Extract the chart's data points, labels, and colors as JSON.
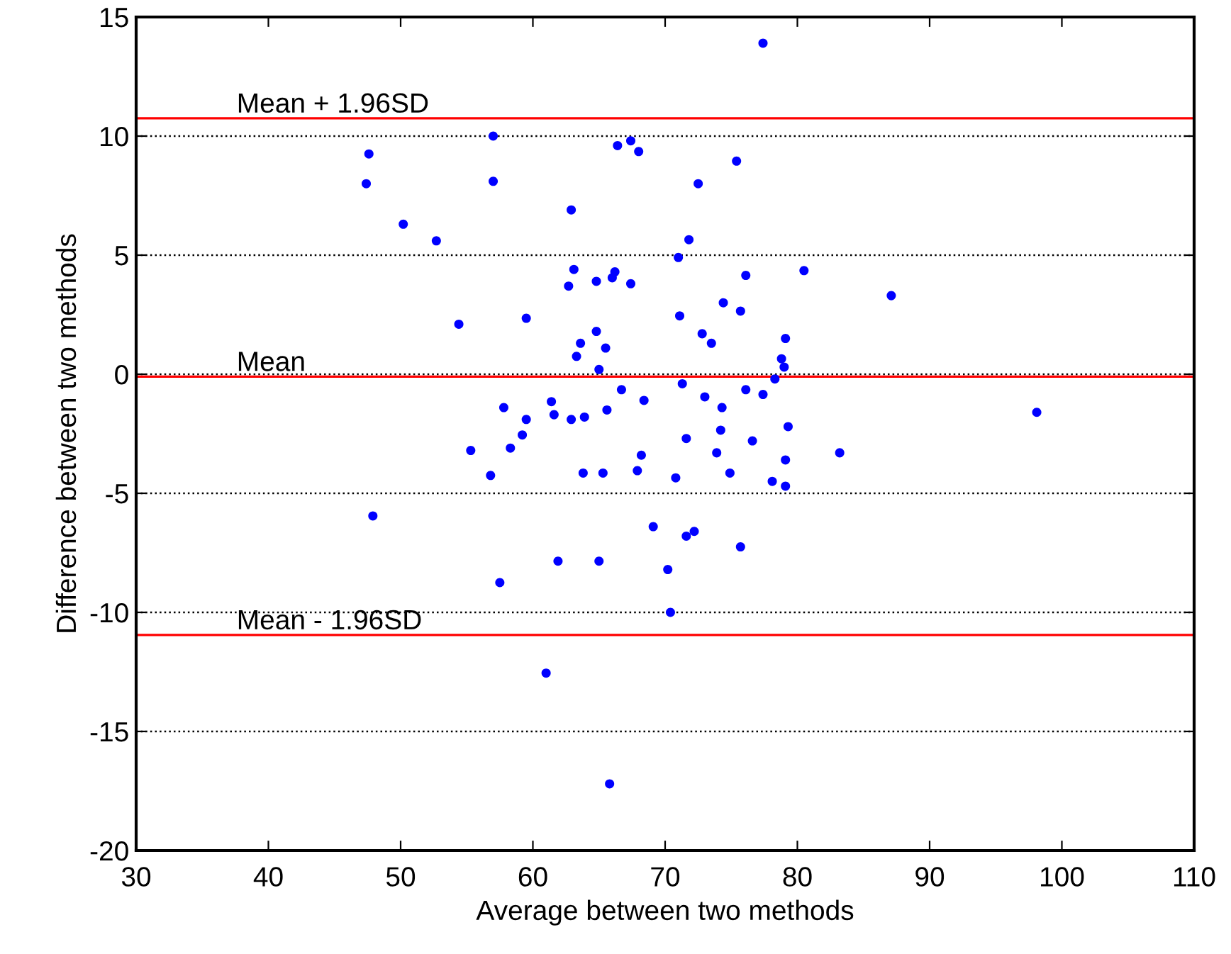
{
  "chart_data": {
    "type": "scatter",
    "xlabel": "Average between two methods",
    "ylabel": "Difference between two methods",
    "xlim": [
      30,
      110
    ],
    "ylim": [
      -20,
      15
    ],
    "xticks": [
      30,
      40,
      50,
      60,
      70,
      80,
      90,
      100,
      110
    ],
    "yticks": [
      -20,
      -15,
      -10,
      -5,
      0,
      5,
      10,
      15
    ],
    "grid": "y",
    "marker": "circle",
    "legend": false,
    "series": [
      {
        "color": "#0000ff",
        "x": [
          47.6,
          47.4,
          57.0,
          57.0,
          50.2,
          52.7,
          62.9,
          63.1,
          62.7,
          64.8,
          66.2,
          66.0,
          67.4,
          66.4,
          67.4,
          68.0,
          54.4,
          59.5,
          64.8,
          63.6,
          63.3,
          65.5,
          65.0,
          66.7,
          68.4,
          57.8,
          59.5,
          61.4,
          61.6,
          62.9,
          63.9,
          65.6,
          59.2,
          55.3,
          56.8,
          58.3,
          63.8,
          65.3,
          68.2,
          67.9,
          69.1,
          47.9,
          61.9,
          65.0,
          57.5,
          61.0,
          65.8,
          77.4,
          75.4,
          72.5,
          71.8,
          71.0,
          80.5,
          76.1,
          87.1,
          74.4,
          75.7,
          71.1,
          72.8,
          73.5,
          79.1,
          78.8,
          79.0,
          78.3,
          71.3,
          76.1,
          77.4,
          73.0,
          74.3,
          98.1,
          74.2,
          79.3,
          71.6,
          76.6,
          73.9,
          79.1,
          83.2,
          70.8,
          74.9,
          78.1,
          79.1,
          71.6,
          72.2,
          75.7,
          70.2,
          70.4
        ],
        "values": [
          9.25,
          8.0,
          10.0,
          8.1,
          6.3,
          5.6,
          6.9,
          4.4,
          3.7,
          3.9,
          4.3,
          4.05,
          3.8,
          9.6,
          9.8,
          9.35,
          2.1,
          2.35,
          1.8,
          1.3,
          0.75,
          1.1,
          0.2,
          -0.65,
          -1.1,
          -1.4,
          -1.9,
          -1.15,
          -1.7,
          -1.9,
          -1.8,
          -1.5,
          -2.55,
          -3.2,
          -4.25,
          -3.1,
          -4.15,
          -4.15,
          -3.4,
          -4.05,
          -6.4,
          -5.95,
          -7.85,
          -7.85,
          -8.75,
          -12.55,
          -17.2,
          13.9,
          8.95,
          8.0,
          5.65,
          4.9,
          4.35,
          4.15,
          3.3,
          3.0,
          2.65,
          2.45,
          1.7,
          1.3,
          1.5,
          0.65,
          0.3,
          -0.2,
          -0.4,
          -0.65,
          -0.85,
          -0.95,
          -1.4,
          -1.6,
          -2.35,
          -2.2,
          -2.7,
          -2.8,
          -3.3,
          -3.6,
          -3.3,
          -4.35,
          -4.15,
          -4.5,
          -4.7,
          -6.8,
          -6.6,
          -7.25,
          -8.2,
          -10.0
        ]
      }
    ],
    "ref_lines": [
      {
        "axis": "y",
        "value": 10.75,
        "label": "Mean + 1.96SD",
        "color": "#ff0000"
      },
      {
        "axis": "y",
        "value": -0.1,
        "label": "Mean",
        "color": "#ff0000"
      },
      {
        "axis": "y",
        "value": -10.95,
        "label": "Mean - 1.96SD",
        "color": "#ff0000"
      }
    ]
  }
}
